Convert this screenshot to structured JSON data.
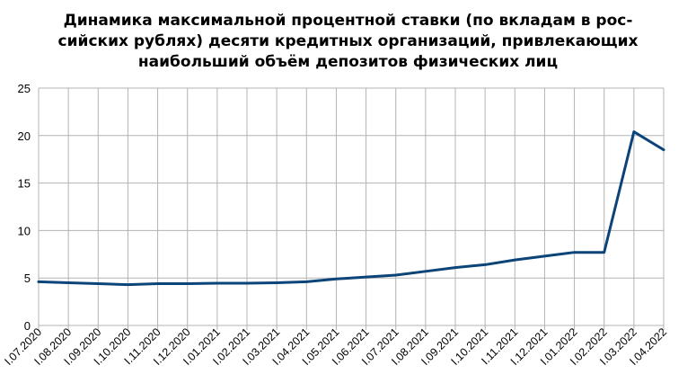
{
  "chart_data": {
    "type": "line",
    "title_lines": [
      "Динамика максимальной процентной ставки (по вкладам в рос-",
      "сийских рублях) десяти кредитных организаций, привлекающих",
      "наибольший объём депозитов физических лиц"
    ],
    "categories": [
      "I.07.2020",
      "I.08.2020",
      "I.09.2020",
      "I.10.2020",
      "I.11.2020",
      "I.12.2020",
      "I.01.2021",
      "I.02.2021",
      "I.03.2021",
      "I.04.2021",
      "I.05.2021",
      "I.06.2021",
      "I.07.2021",
      "I.08.2021",
      "I.09.2021",
      "I.10.2021",
      "I.11.2021",
      "I.12.2021",
      "I.01.2022",
      "I.02.2022",
      "I.03.2022",
      "I.04.2022"
    ],
    "series": [
      {
        "values": [
          4.6,
          4.5,
          4.4,
          4.3,
          4.4,
          4.4,
          4.45,
          4.45,
          4.5,
          4.6,
          4.9,
          5.1,
          5.3,
          5.7,
          6.1,
          6.4,
          6.9,
          7.3,
          7.7,
          7.7,
          20.4,
          18.5
        ],
        "color": "#0b4478"
      }
    ],
    "yticks": [
      0,
      5,
      10,
      15,
      20,
      25
    ],
    "ylim": [
      0,
      25
    ],
    "grid": true,
    "legend": "none",
    "colors": {
      "line": "#0b4478",
      "grid": "#b3b3b3",
      "axis": "#b3b3b3"
    }
  }
}
